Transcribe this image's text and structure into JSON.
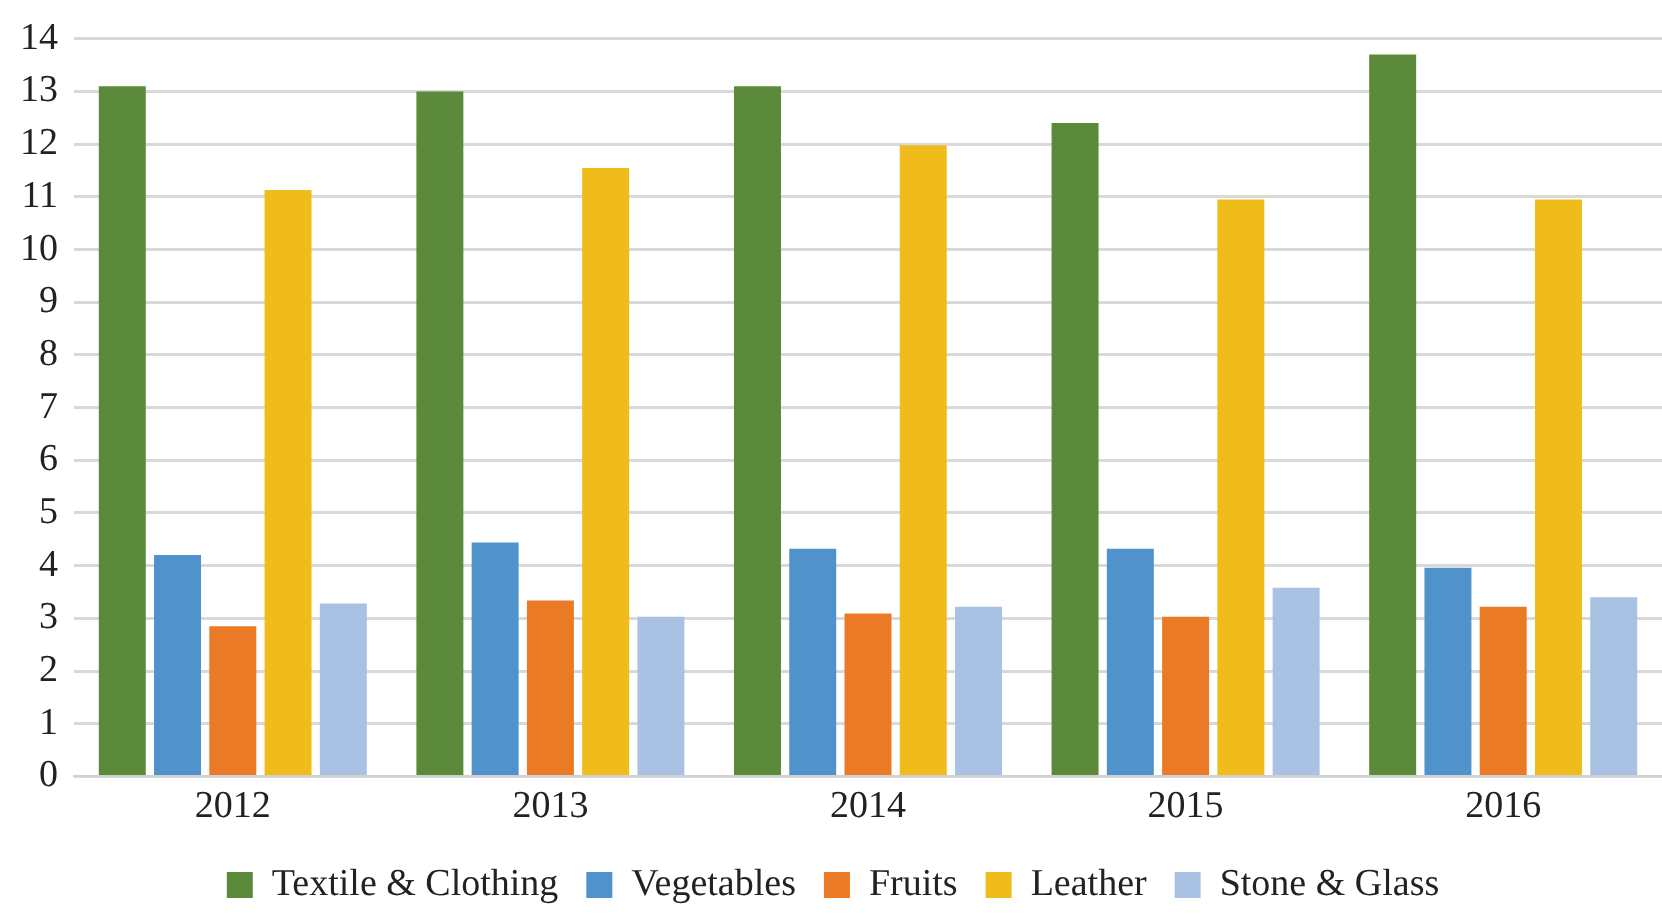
{
  "chart_data": {
    "type": "bar",
    "categories": [
      "2012",
      "2013",
      "2014",
      "2015",
      "2016"
    ],
    "series": [
      {
        "name": "Textile & Clothing",
        "color": "#5a8a3a",
        "values": [
          13.1,
          13.0,
          13.1,
          12.4,
          13.7
        ]
      },
      {
        "name": "Vegetables",
        "color": "#5093cc",
        "values": [
          4.2,
          4.44,
          4.32,
          4.32,
          3.96
        ]
      },
      {
        "name": "Fruits",
        "color": "#eb7a26",
        "values": [
          2.85,
          3.34,
          3.09,
          3.03,
          3.22
        ]
      },
      {
        "name": "Leather",
        "color": "#f0bc1c",
        "values": [
          11.13,
          11.55,
          11.98,
          10.95,
          10.95
        ]
      },
      {
        "name": "Stone & Glass",
        "color": "#a9c1e2",
        "values": [
          3.28,
          3.03,
          3.22,
          3.58,
          3.4
        ]
      }
    ],
    "ylim": [
      0,
      14
    ],
    "yticks": [
      0,
      1,
      2,
      3,
      4,
      5,
      6,
      7,
      8,
      9,
      10,
      11,
      12,
      13,
      14
    ],
    "grid": "y",
    "legend": "bottom"
  }
}
